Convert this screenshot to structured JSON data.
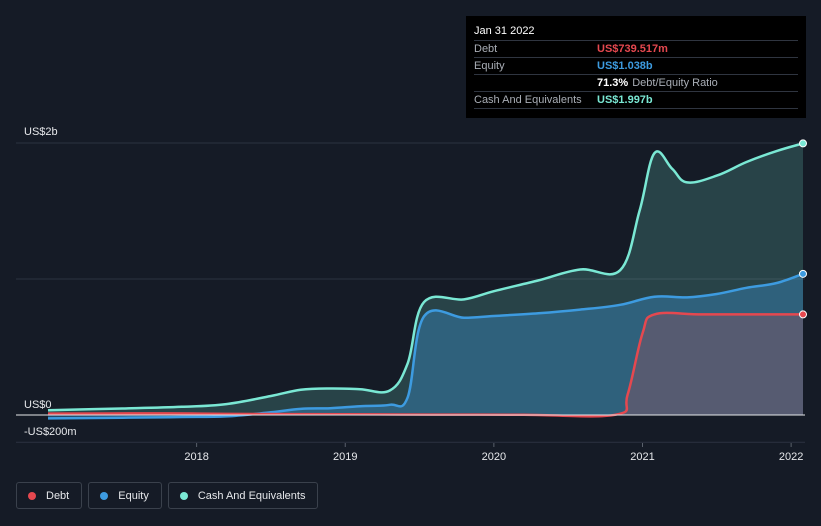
{
  "tooltip": {
    "date": "Jan 31 2022",
    "rows": [
      {
        "label": "Debt",
        "value": "US$739.517m",
        "color": "#e5484f"
      },
      {
        "label": "Equity",
        "value": "US$1.038b",
        "color": "#3d9be0"
      },
      {
        "label": "",
        "value": "71.3%",
        "suffix": "Debt/Equity Ratio",
        "color": "#ffffff"
      },
      {
        "label": "Cash And Equivalents",
        "value": "US$1.997b",
        "color": "#7ae8d4"
      }
    ]
  },
  "legend": [
    {
      "label": "Debt",
      "color": "#e5484f"
    },
    {
      "label": "Equity",
      "color": "#3d9be0"
    },
    {
      "label": "Cash And Equivalents",
      "color": "#7ae8d4"
    }
  ],
  "chart_data": {
    "type": "area",
    "y_tick_labels": [
      "US$2b",
      "US$0",
      "-US$200m"
    ],
    "y_gridlines": [
      2000,
      1000,
      0,
      -200
    ],
    "ylim": [
      -200,
      2000
    ],
    "xlim": [
      2017.0,
      2022.08
    ],
    "x_tick_labels": [
      "2018",
      "2019",
      "2020",
      "2021",
      "2022"
    ],
    "x_ticks": [
      2018,
      2019,
      2020,
      2021,
      2022
    ],
    "series": [
      {
        "name": "Cash And Equivalents",
        "color": "#7ae8d4",
        "x": [
          2017.0,
          2017.5,
          2017.9,
          2018.2,
          2018.5,
          2018.7,
          2018.9,
          2019.1,
          2019.3,
          2019.42,
          2019.53,
          2019.8,
          2020.0,
          2020.3,
          2020.58,
          2020.85,
          2020.98,
          2021.08,
          2021.2,
          2021.3,
          2021.5,
          2021.7,
          2021.9,
          2022.08
        ],
        "y": [
          35,
          48,
          60,
          80,
          140,
          185,
          195,
          190,
          180,
          380,
          830,
          850,
          910,
          990,
          1070,
          1065,
          1500,
          1925,
          1810,
          1710,
          1760,
          1860,
          1940,
          1997
        ]
      },
      {
        "name": "Equity",
        "color": "#3d9be0",
        "x": [
          2017.0,
          2017.5,
          2017.9,
          2018.2,
          2018.5,
          2018.7,
          2018.9,
          2019.1,
          2019.3,
          2019.42,
          2019.53,
          2019.8,
          2020.0,
          2020.3,
          2020.58,
          2020.85,
          2021.08,
          2021.3,
          2021.5,
          2021.7,
          2021.9,
          2022.08
        ],
        "y": [
          -25,
          -20,
          -15,
          -10,
          20,
          45,
          50,
          65,
          75,
          130,
          725,
          715,
          728,
          748,
          775,
          810,
          870,
          865,
          890,
          935,
          970,
          1038
        ]
      },
      {
        "name": "Debt",
        "color": "#e5484f",
        "x": [
          2017.0,
          2017.8,
          2018.2,
          2019.0,
          2019.6,
          2020.2,
          2020.82,
          2020.9,
          2021.0,
          2021.08,
          2021.4,
          2021.8,
          2022.08
        ],
        "y": [
          10,
          12,
          8,
          5,
          3,
          2,
          2,
          150,
          600,
          739.517,
          739.517,
          739.517,
          739.517
        ]
      }
    ]
  }
}
